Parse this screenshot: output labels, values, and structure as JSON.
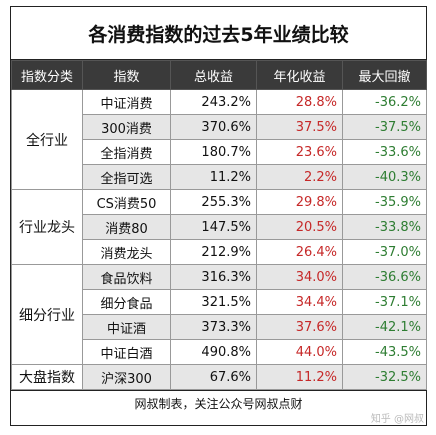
{
  "title": "各消费指数的过去5年业绩比较",
  "headers": [
    "指数分类",
    "指数",
    "总收益",
    "年化收益",
    "最大回撤"
  ],
  "groups": {
    "g1": "全行业",
    "g2": "行业龙头",
    "g3": "细分行业",
    "g4": "大盘指数"
  },
  "rows": [
    {
      "name": "中证消费",
      "total": "243.2%",
      "annual": "28.8%",
      "drawdown": "-36.2%"
    },
    {
      "name": "300消费",
      "total": "370.6%",
      "annual": "37.5%",
      "drawdown": "-37.5%"
    },
    {
      "name": "全指消费",
      "total": "180.7%",
      "annual": "23.6%",
      "drawdown": "-33.6%"
    },
    {
      "name": "全指可选",
      "total": "11.2%",
      "annual": "2.2%",
      "drawdown": "-40.3%"
    },
    {
      "name": "CS消费50",
      "total": "255.3%",
      "annual": "29.8%",
      "drawdown": "-35.9%"
    },
    {
      "name": "消费80",
      "total": "147.5%",
      "annual": "20.5%",
      "drawdown": "-33.8%"
    },
    {
      "name": "消费龙头",
      "total": "212.9%",
      "annual": "26.4%",
      "drawdown": "-37.0%"
    },
    {
      "name": "食品饮料",
      "total": "316.3%",
      "annual": "34.0%",
      "drawdown": "-36.6%"
    },
    {
      "name": "细分食品",
      "total": "321.5%",
      "annual": "34.4%",
      "drawdown": "-37.1%"
    },
    {
      "name": "中证酒",
      "total": "373.3%",
      "annual": "37.6%",
      "drawdown": "-42.1%"
    },
    {
      "name": "中证白酒",
      "total": "490.8%",
      "annual": "44.0%",
      "drawdown": "-43.5%"
    },
    {
      "name": "沪深300",
      "total": "67.6%",
      "annual": "11.2%",
      "drawdown": "-32.5%"
    }
  ],
  "footer": "网叔制表，关注公众号网叔点财",
  "watermark": "知乎 @网叔"
}
